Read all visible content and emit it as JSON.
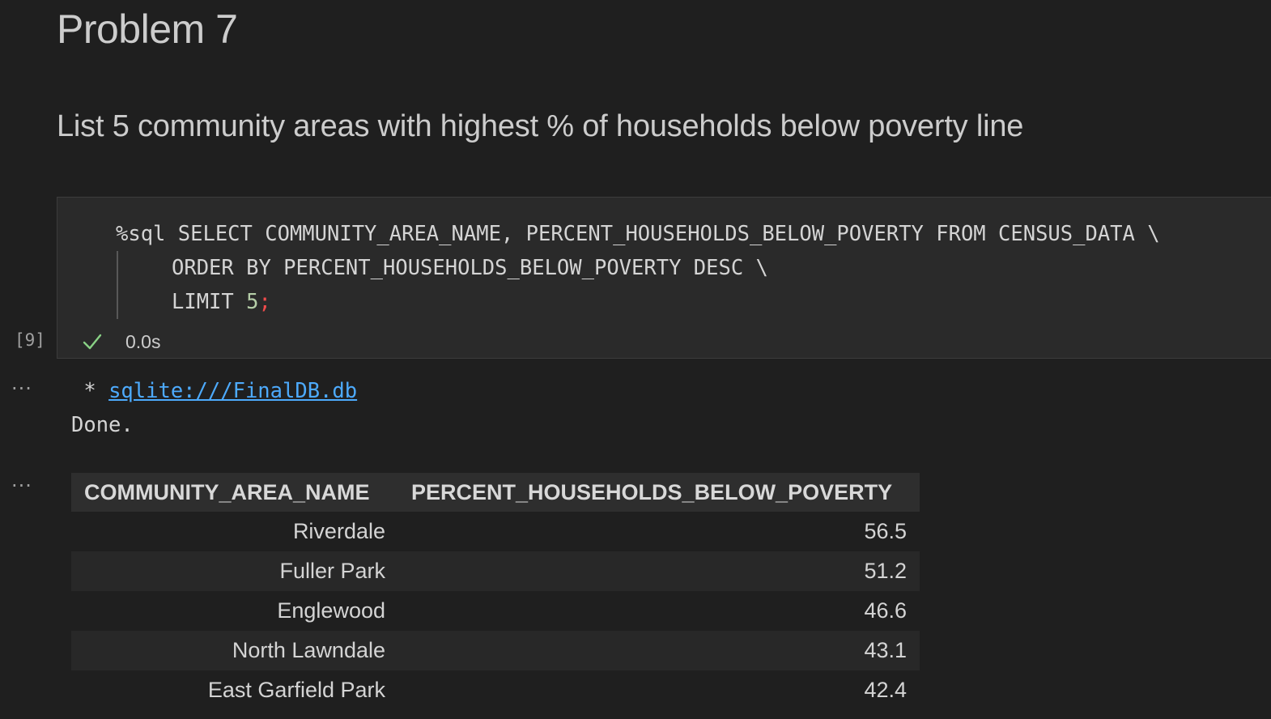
{
  "markdown": {
    "heading": "Problem 7",
    "description": "List 5 community areas with highest % of households below poverty line"
  },
  "code_cell": {
    "execution_count": "[9]",
    "line1": "%sql SELECT COMMUNITY_AREA_NAME, PERCENT_HOUSEHOLDS_BELOW_POVERTY FROM CENSUS_DATA \\",
    "line2": "ORDER BY PERCENT_HOUSEHOLDS_BELOW_POVERTY DESC \\",
    "line3_keyword": "LIMIT ",
    "line3_number": "5",
    "line3_punct": ";",
    "status_icon": "check-icon",
    "status_color": "#89d185",
    "duration": "0.0s"
  },
  "output": {
    "dots": "···",
    "connection_prefix": " * ",
    "connection_link": "sqlite:///FinalDB.db",
    "status": "Done.",
    "table": {
      "headers": [
        "COMMUNITY_AREA_NAME",
        "PERCENT_HOUSEHOLDS_BELOW_POVERTY"
      ],
      "rows": [
        [
          "Riverdale",
          "56.5"
        ],
        [
          "Fuller Park",
          "51.2"
        ],
        [
          "Englewood",
          "46.6"
        ],
        [
          "North Lawndale",
          "43.1"
        ],
        [
          "East Garfield Park",
          "42.4"
        ]
      ]
    }
  }
}
